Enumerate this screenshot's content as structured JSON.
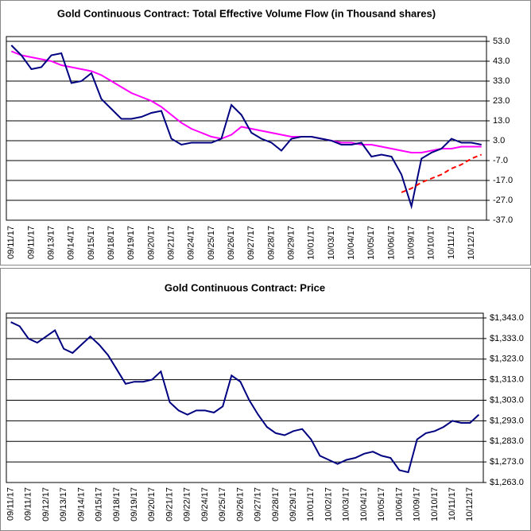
{
  "chart_data": [
    {
      "type": "line",
      "title": "Gold Continuous Contract: Total Effective Volume Flow (in Thousand shares)",
      "categories": [
        "09/11/17",
        null,
        "09/11/17",
        null,
        "09/13/17",
        null,
        "09/14/17",
        null,
        "09/15/17",
        null,
        "09/18/17",
        null,
        "09/19/17",
        null,
        "09/20/17",
        null,
        "09/21/17",
        null,
        "09/24/17",
        null,
        "09/25/17",
        null,
        "09/26/17",
        null,
        "09/27/17",
        null,
        "09/28/17",
        null,
        "09/29/17",
        null,
        "10/01/17",
        null,
        "10/03/17",
        null,
        "10/04/17",
        null,
        "10/05/17",
        null,
        "10/06/17",
        null,
        "10/09/17",
        null,
        "10/10/17",
        null,
        "10/11/17",
        null,
        "10/12/17",
        null
      ],
      "series": [
        {
          "color": "#ff00ff",
          "values": [
            48,
            46,
            45,
            44,
            43,
            41,
            40,
            39,
            38,
            36,
            33,
            30,
            27,
            25,
            23,
            20,
            16,
            12,
            9,
            7,
            5,
            4,
            6,
            10,
            9,
            8,
            7,
            6,
            5,
            5,
            5,
            4,
            3,
            2,
            2,
            1,
            1,
            0,
            -1,
            -2,
            -3,
            -3,
            -2,
            -1,
            -1,
            0,
            0,
            0
          ]
        },
        {
          "color": "#000080",
          "values": [
            51,
            46,
            39,
            40,
            46,
            47,
            32,
            33,
            37,
            24,
            19,
            14,
            14,
            15,
            17,
            18,
            4,
            1,
            2,
            2,
            2,
            4,
            21,
            16,
            7,
            4,
            2,
            -2,
            4,
            5,
            5,
            4,
            3,
            1,
            1,
            2,
            -5,
            -4,
            -5,
            -14,
            -30,
            -6,
            -3,
            -1,
            4,
            2,
            2,
            1
          ]
        },
        {
          "color": "#ff0000",
          "dashed": true,
          "values": [
            null,
            null,
            null,
            null,
            null,
            null,
            null,
            null,
            null,
            null,
            null,
            null,
            null,
            null,
            null,
            null,
            null,
            null,
            null,
            null,
            null,
            null,
            null,
            null,
            null,
            null,
            null,
            null,
            null,
            null,
            null,
            null,
            null,
            null,
            null,
            null,
            null,
            null,
            null,
            -23,
            -21,
            -18,
            -16,
            -14,
            -11,
            -9,
            -6,
            -4
          ]
        }
      ],
      "ylim": [
        -37,
        53
      ],
      "yticks": [
        {
          "value": 53,
          "label": "53.0"
        },
        {
          "value": 43,
          "label": "43.0"
        },
        {
          "value": 33,
          "label": "33.0"
        },
        {
          "value": 23,
          "label": "23.0"
        },
        {
          "value": 13,
          "label": "13.0"
        },
        {
          "value": 3,
          "label": "3.0"
        },
        {
          "value": -7,
          "label": "-7.0"
        },
        {
          "value": -17,
          "label": "-17.0"
        },
        {
          "value": -27,
          "label": "-27.0"
        },
        {
          "value": -37,
          "label": "-37.0"
        }
      ],
      "grid": true
    },
    {
      "type": "line",
      "title": "Gold Continuous Contract: Price",
      "categories": [
        "09/11/17",
        null,
        "09/11/17",
        null,
        "09/12/17",
        null,
        "09/13/17",
        null,
        "09/14/17",
        null,
        "09/15/17",
        null,
        "09/18/17",
        null,
        "09/19/17",
        null,
        "09/20/17",
        null,
        "09/21/17",
        null,
        "09/22/17",
        null,
        "09/24/17",
        null,
        "09/25/17",
        null,
        "09/26/17",
        null,
        "09/27/17",
        null,
        "09/28/17",
        null,
        "09/29/17",
        null,
        "10/01/17",
        null,
        "10/02/17",
        null,
        "10/03/17",
        null,
        "10/04/17",
        null,
        "10/05/17",
        null,
        "10/06/17",
        null,
        "10/09/17",
        null,
        "10/10/17",
        null,
        "10/11/17",
        null,
        "10/12/17",
        null
      ],
      "series": [
        {
          "color": "#000080",
          "values": [
            1341,
            1339,
            1333,
            1331,
            1334,
            1337,
            1328,
            1326,
            1330,
            1334,
            1330,
            1325,
            1318,
            1311,
            1312,
            1312,
            1313,
            1317,
            1302,
            1298,
            1296,
            1298,
            1298,
            1297,
            1300,
            1315,
            1312,
            1303,
            1296,
            1290,
            1287,
            1286,
            1288,
            1289,
            1284,
            1276,
            1274,
            1272,
            1274,
            1275,
            1277,
            1278,
            1276,
            1275,
            1269,
            1268,
            1284,
            1287,
            1288,
            1290,
            1293,
            1292,
            1292,
            1296
          ]
        }
      ],
      "ylim": [
        1263,
        1343
      ],
      "yticks": [
        {
          "value": 1343,
          "label": "$1,343.0"
        },
        {
          "value": 1333,
          "label": "$1,333.0"
        },
        {
          "value": 1323,
          "label": "$1,323.0"
        },
        {
          "value": 1313,
          "label": "$1,313.0"
        },
        {
          "value": 1303,
          "label": "$1,303.0"
        },
        {
          "value": 1293,
          "label": "$1,293.0"
        },
        {
          "value": 1283,
          "label": "$1,283.0"
        },
        {
          "value": 1273,
          "label": "$1,273.0"
        },
        {
          "value": 1263,
          "label": "$1,263.0"
        }
      ],
      "grid": true
    }
  ]
}
